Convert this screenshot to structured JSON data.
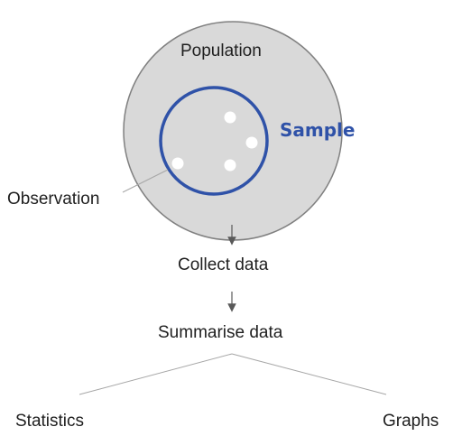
{
  "labels": {
    "population": "Population",
    "sample": "Sample",
    "observation": "Observation",
    "collect": "Collect data",
    "summarise": "Summarise data",
    "statistics": "Statistics",
    "graphs": "Graphs"
  },
  "colors": {
    "population_fill": "#d9d9d9",
    "population_stroke": "#808080",
    "sample_stroke": "#2f52a8",
    "sample_text": "#2f52a8",
    "observation_dot": "#ffffff",
    "connector": "#a6a6a6",
    "arrow": "#595959"
  }
}
